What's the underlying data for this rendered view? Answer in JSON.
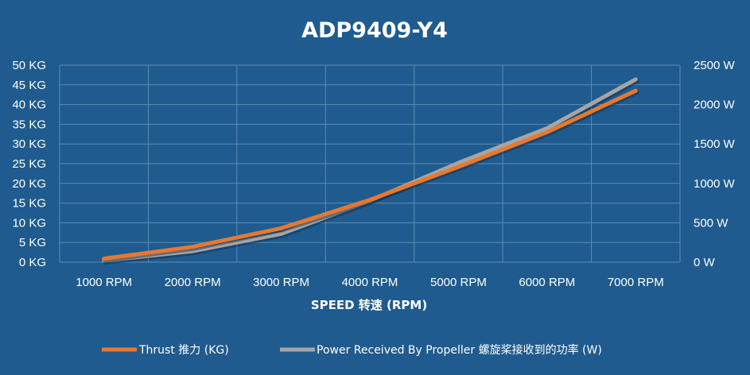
{
  "chart_data": {
    "type": "line",
    "title": "ADP9409-Y4",
    "xlabel": "SPEED 转速 (RPM)",
    "categories": [
      "1000 RPM",
      "2000 RPM",
      "3000 RPM",
      "4000 RPM",
      "5000 RPM",
      "6000 RPM",
      "7000 RPM"
    ],
    "y_left": {
      "ticks": [
        "0 KG",
        "5 KG",
        "10 KG",
        "15 KG",
        "20 KG",
        "25 KG",
        "30 KG",
        "35 KG",
        "40 KG",
        "45 KG",
        "50 KG"
      ],
      "ylim": [
        0,
        50
      ]
    },
    "y_right": {
      "ticks": [
        "0 W",
        "500 W",
        "1000 W",
        "1500 W",
        "2000 W",
        "2500 W"
      ],
      "ylim": [
        0,
        2500
      ]
    },
    "series": [
      {
        "name": "Thrust 推力 (KG)",
        "axis": "left",
        "color": "#e8782f",
        "values": [
          0.9,
          3.9,
          8.6,
          15.8,
          24.2,
          33.0,
          43.5
        ]
      },
      {
        "name": "Power Received By Propeller 螺旋桨接收到的功率 (W)",
        "axis": "right",
        "color": "#a5a5a5",
        "values": [
          20,
          140,
          360,
          780,
          1260,
          1700,
          2320
        ]
      }
    ],
    "grid": true,
    "legend": "bottom"
  }
}
